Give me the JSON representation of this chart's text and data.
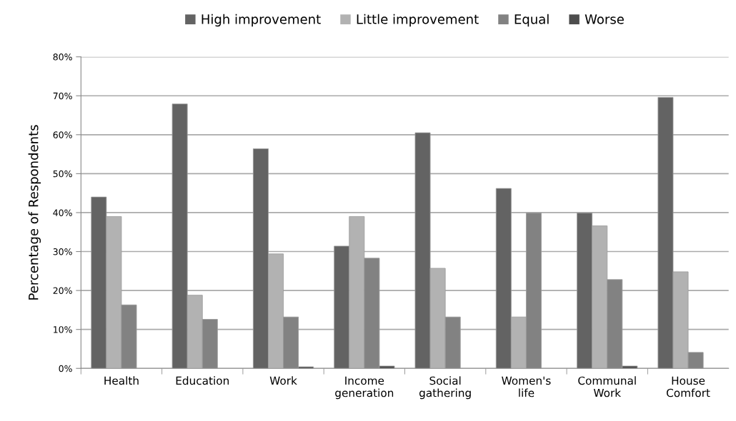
{
  "chart_data": {
    "type": "bar",
    "ylabel": "Percentage of Respondents",
    "categories": [
      "Health",
      "Education",
      "Work",
      "Income\ngeneration",
      "Social\ngathering",
      "Women's\nlife",
      "Communal\nWork",
      "House\nComfort"
    ],
    "series": [
      {
        "name": "High improvement",
        "color": "#636363",
        "values": [
          44,
          67.9,
          56.4,
          31.4,
          60.5,
          46.2,
          39.9,
          69.6
        ]
      },
      {
        "name": "Little improvement",
        "color": "#b2b2b2",
        "values": [
          39,
          18.8,
          29.4,
          39,
          25.7,
          13.2,
          36.6,
          24.8
        ]
      },
      {
        "name": "Equal",
        "color": "#828282",
        "values": [
          16.3,
          12.6,
          13.2,
          28.3,
          13.2,
          39.9,
          22.8,
          4.1
        ]
      },
      {
        "name": "Worse",
        "color": "#4d4d4d",
        "values": [
          null,
          null,
          0.4,
          0.6,
          null,
          null,
          0.6,
          null
        ]
      }
    ],
    "ylim": [
      0,
      80
    ],
    "yticks": [
      {
        "value": 0,
        "label": "0%"
      },
      {
        "value": 10,
        "label": "10%"
      },
      {
        "value": 20,
        "label": "20%"
      },
      {
        "value": 30,
        "label": "30%"
      },
      {
        "value": 40,
        "label": "40%"
      },
      {
        "value": 50,
        "label": "50%"
      },
      {
        "value": 60,
        "label": "60%"
      },
      {
        "value": 70,
        "label": "70%"
      },
      {
        "value": 80,
        "label": "80%"
      }
    ],
    "grid": "y",
    "legend": "top"
  }
}
